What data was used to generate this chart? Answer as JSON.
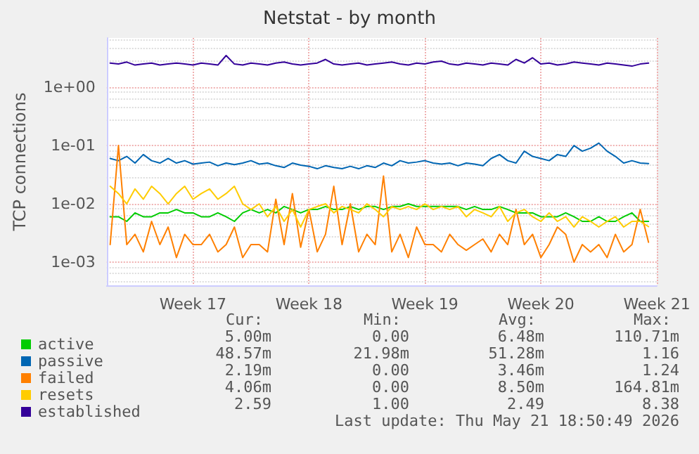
{
  "chart_data": {
    "type": "line",
    "title": "Netstat - by month",
    "ylabel": "TCP connections",
    "log": "y",
    "grid": true,
    "legend": "bottom left",
    "marker": "none",
    "line_style": "solid",
    "ylim": [
      0.0004,
      7
    ],
    "yticks": [
      {
        "value": 0.001,
        "label": "1e-03"
      },
      {
        "value": 0.01,
        "label": "1e-02"
      },
      {
        "value": 0.1,
        "label": "1e-01"
      },
      {
        "value": 1,
        "label": "1e+00"
      }
    ],
    "xlim": [
      "2026-04-18T19:00",
      "2026-05-22T00:00"
    ],
    "xticks": [
      {
        "value": "2026-04-24",
        "label": "Week 17"
      },
      {
        "value": "2026-05-01",
        "label": "Week 18"
      },
      {
        "value": "2026-05-08",
        "label": "Week 19"
      },
      {
        "value": "2026-05-15",
        "label": "Week 20"
      },
      {
        "value": "2026-05-22",
        "label": "Week 21"
      }
    ],
    "x": [
      "2026-04-19T00:00",
      "2026-04-19T12:00",
      "2026-04-20T00:00",
      "2026-04-20T12:00",
      "2026-04-21T00:00",
      "2026-04-21T12:00",
      "2026-04-22T00:00",
      "2026-04-22T12:00",
      "2026-04-23T00:00",
      "2026-04-23T12:00",
      "2026-04-24T00:00",
      "2026-04-24T12:00",
      "2026-04-25T00:00",
      "2026-04-25T12:00",
      "2026-04-26T00:00",
      "2026-04-26T12:00",
      "2026-04-27T00:00",
      "2026-04-27T12:00",
      "2026-04-28T00:00",
      "2026-04-28T12:00",
      "2026-04-29T00:00",
      "2026-04-29T12:00",
      "2026-04-30T00:00",
      "2026-04-30T12:00",
      "2026-05-01T00:00",
      "2026-05-01T12:00",
      "2026-05-02T00:00",
      "2026-05-02T12:00",
      "2026-05-03T00:00",
      "2026-05-03T12:00",
      "2026-05-04T00:00",
      "2026-05-04T12:00",
      "2026-05-05T00:00",
      "2026-05-05T12:00",
      "2026-05-06T00:00",
      "2026-05-06T12:00",
      "2026-05-07T00:00",
      "2026-05-07T12:00",
      "2026-05-08T00:00",
      "2026-05-08T12:00",
      "2026-05-09T00:00",
      "2026-05-09T12:00",
      "2026-05-10T00:00",
      "2026-05-10T12:00",
      "2026-05-11T00:00",
      "2026-05-11T12:00",
      "2026-05-12T00:00",
      "2026-05-12T12:00",
      "2026-05-13T00:00",
      "2026-05-13T12:00",
      "2026-05-14T00:00",
      "2026-05-14T12:00",
      "2026-05-15T00:00",
      "2026-05-15T12:00",
      "2026-05-16T00:00",
      "2026-05-16T12:00",
      "2026-05-17T00:00",
      "2026-05-17T12:00",
      "2026-05-18T00:00",
      "2026-05-18T12:00",
      "2026-05-19T00:00",
      "2026-05-19T12:00",
      "2026-05-20T00:00",
      "2026-05-20T12:00",
      "2026-05-21T00:00",
      "2026-05-21T12:00"
    ],
    "series": [
      {
        "name": "active",
        "color": "#00cc00",
        "values": [
          0.006,
          0.006,
          0.005,
          0.007,
          0.006,
          0.006,
          0.007,
          0.007,
          0.008,
          0.007,
          0.007,
          0.006,
          0.006,
          0.007,
          0.006,
          0.005,
          0.007,
          0.008,
          0.007,
          0.008,
          0.007,
          0.009,
          0.008,
          0.007,
          0.008,
          0.008,
          0.009,
          0.008,
          0.008,
          0.009,
          0.008,
          0.009,
          0.009,
          0.008,
          0.009,
          0.009,
          0.01,
          0.009,
          0.009,
          0.009,
          0.009,
          0.009,
          0.009,
          0.008,
          0.009,
          0.008,
          0.008,
          0.009,
          0.008,
          0.007,
          0.007,
          0.007,
          0.006,
          0.006,
          0.006,
          0.007,
          0.006,
          0.005,
          0.005,
          0.006,
          0.005,
          0.005,
          0.006,
          0.007,
          0.005,
          0.005
        ]
      },
      {
        "name": "passive",
        "color": "#0066b3",
        "values": [
          0.06,
          0.055,
          0.065,
          0.05,
          0.07,
          0.055,
          0.05,
          0.06,
          0.05,
          0.055,
          0.048,
          0.05,
          0.052,
          0.045,
          0.05,
          0.047,
          0.05,
          0.055,
          0.048,
          0.05,
          0.045,
          0.042,
          0.05,
          0.046,
          0.044,
          0.04,
          0.045,
          0.042,
          0.04,
          0.044,
          0.04,
          0.045,
          0.042,
          0.05,
          0.045,
          0.055,
          0.05,
          0.052,
          0.055,
          0.05,
          0.048,
          0.05,
          0.045,
          0.05,
          0.048,
          0.045,
          0.06,
          0.07,
          0.055,
          0.05,
          0.08,
          0.065,
          0.06,
          0.055,
          0.07,
          0.065,
          0.1,
          0.08,
          0.09,
          0.11,
          0.08,
          0.065,
          0.05,
          0.055,
          0.05,
          0.049
        ]
      },
      {
        "name": "failed",
        "color": "#ff8000",
        "values": [
          0.002,
          0.1,
          0.002,
          0.003,
          0.0015,
          0.005,
          0.002,
          0.004,
          0.0012,
          0.003,
          0.002,
          0.002,
          0.003,
          0.0015,
          0.002,
          0.004,
          0.0012,
          0.002,
          0.002,
          0.0015,
          0.012,
          0.002,
          0.015,
          0.0018,
          0.008,
          0.0015,
          0.003,
          0.02,
          0.002,
          0.01,
          0.0015,
          0.003,
          0.002,
          0.03,
          0.0015,
          0.003,
          0.0012,
          0.004,
          0.002,
          0.002,
          0.0015,
          0.003,
          0.002,
          0.0016,
          0.002,
          0.0025,
          0.0015,
          0.003,
          0.002,
          0.008,
          0.002,
          0.003,
          0.0012,
          0.002,
          0.004,
          0.003,
          0.001,
          0.002,
          0.0015,
          0.002,
          0.0012,
          0.003,
          0.0015,
          0.002,
          0.008,
          0.00219
        ]
      },
      {
        "name": "resets",
        "color": "#ffcc00",
        "values": [
          0.02,
          0.015,
          0.01,
          0.018,
          0.012,
          0.02,
          0.015,
          0.01,
          0.015,
          0.02,
          0.012,
          0.015,
          0.018,
          0.012,
          0.015,
          0.02,
          0.01,
          0.008,
          0.01,
          0.006,
          0.009,
          0.005,
          0.008,
          0.004,
          0.008,
          0.009,
          0.01,
          0.007,
          0.009,
          0.008,
          0.007,
          0.01,
          0.008,
          0.006,
          0.009,
          0.008,
          0.009,
          0.008,
          0.01,
          0.008,
          0.009,
          0.008,
          0.009,
          0.006,
          0.008,
          0.007,
          0.006,
          0.009,
          0.005,
          0.007,
          0.008,
          0.006,
          0.005,
          0.007,
          0.005,
          0.006,
          0.004,
          0.006,
          0.005,
          0.004,
          0.005,
          0.006,
          0.004,
          0.005,
          0.005,
          0.00406
        ]
      },
      {
        "name": "established",
        "color": "#330099",
        "values": [
          2.6,
          2.5,
          2.7,
          2.4,
          2.5,
          2.6,
          2.4,
          2.5,
          2.6,
          2.5,
          2.4,
          2.6,
          2.5,
          2.4,
          3.5,
          2.5,
          2.4,
          2.6,
          2.5,
          2.4,
          2.6,
          2.7,
          2.5,
          2.4,
          2.5,
          2.6,
          3.0,
          2.5,
          2.4,
          2.5,
          2.6,
          2.4,
          2.5,
          2.6,
          2.7,
          2.5,
          2.4,
          2.6,
          2.5,
          2.7,
          2.8,
          2.5,
          2.4,
          2.6,
          2.5,
          2.4,
          2.6,
          2.5,
          2.4,
          3.0,
          2.6,
          3.2,
          2.5,
          2.6,
          2.4,
          2.5,
          2.7,
          2.6,
          2.5,
          2.4,
          2.6,
          2.5,
          2.4,
          2.3,
          2.5,
          2.59
        ]
      }
    ],
    "annotations": [
      "Cur:",
      "Min:",
      "Avg:",
      "Max:",
      "5.00m",
      "0.00",
      "6.48m",
      "110.71m",
      "48.57m",
      "21.98m",
      "51.28m",
      "1.16",
      "2.19m",
      "0.00",
      "3.46m",
      "1.24",
      "4.06m",
      "0.00",
      "8.50m",
      "164.81m",
      "2.59",
      "1.00",
      "2.49",
      "8.38",
      "Last update: Thu May 21 18:50:49 2026"
    ]
  }
}
